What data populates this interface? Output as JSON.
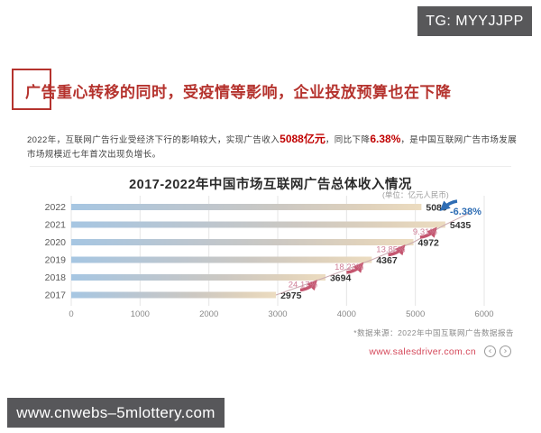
{
  "badge": {
    "label": "TG: MYYJJPP"
  },
  "watermark": {
    "label": "www.cnwebs–5mlottery.com"
  },
  "header": {
    "title": "广告重心转移的同时，受疫情等影响，企业投放预算也在下降"
  },
  "intro": {
    "segments": [
      {
        "text": "2022年，互联网广告行业受经济下行的影响较大，实现广告收入",
        "highlight": false
      },
      {
        "text": "5088亿元",
        "highlight": true
      },
      {
        "text": "，同比下降",
        "highlight": false
      },
      {
        "text": "6.38%",
        "highlight": true
      },
      {
        "text": "，是中国互联网广告市场发展市场规模近七年首次出现负增长。",
        "highlight": false
      }
    ]
  },
  "chart_data": {
    "type": "bar",
    "orientation": "horizontal",
    "title": "2017-2022年中国市场互联网广告总体收入情况",
    "unit_label": "(单位：亿元人民币)",
    "categories": [
      "2022",
      "2021",
      "2020",
      "2019",
      "2018",
      "2017"
    ],
    "values": [
      5088,
      5435,
      4972,
      4367,
      3694,
      2975
    ],
    "growth_labels": [
      "-6.38%",
      "9.31%",
      "13.85%",
      "18.22%",
      "24.17%",
      null
    ],
    "xlim": [
      0,
      6000
    ],
    "x_ticks": [
      0,
      1000,
      2000,
      3000,
      4000,
      5000,
      6000
    ],
    "grid": true,
    "legend": "none",
    "colors": {
      "bar_start": "#a6c6e2",
      "bar_mid": "#ccc8c2",
      "bar_end": "#ecdcc0",
      "growth_up": "#cf7d96",
      "growth_down": "#2e6db4",
      "trend_line": "#cbaab1",
      "arrow_up": "#c4566f",
      "arrow_down": "#2e6db4",
      "value_text": "#333333",
      "year_text": "#5a5a5a",
      "axis_text": "#888888",
      "gridline": "#e5e5e5"
    }
  },
  "footer": {
    "source": "*数据来源：2022年中国互联网广告数据报告",
    "site": "www.salesdriver.com.cn",
    "prev": "‹",
    "next": "›"
  }
}
